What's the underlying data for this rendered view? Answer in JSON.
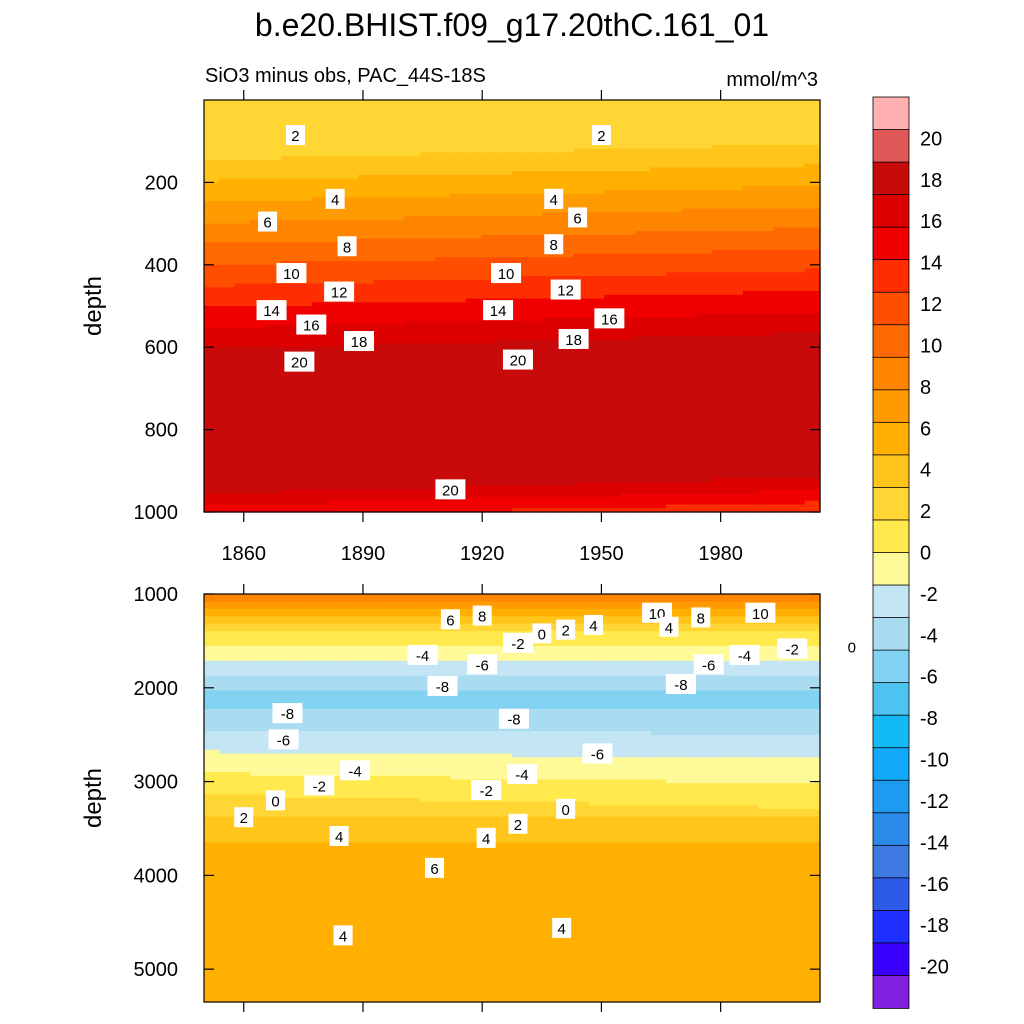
{
  "chart_data": {
    "type": "contour",
    "title": "b.e20.BHIST.f09_g17.20thC.161_01",
    "subtitle_left": "SiO3 minus obs, PAC_44S-18S",
    "subtitle_right": "mmol/m^3",
    "x_range": [
      1850,
      2005
    ],
    "x_ticks": [
      1860,
      1890,
      1920,
      1950,
      1980
    ],
    "colorbar": {
      "levels": [
        -22,
        -20,
        -18,
        -16,
        -14,
        -12,
        -10,
        -8,
        -6,
        -4,
        -2,
        0,
        2,
        4,
        6,
        8,
        10,
        12,
        14,
        16,
        18,
        20,
        22
      ],
      "colors": [
        "#7f1fe0",
        "#3a00ff",
        "#1f2fff",
        "#2e5ae8",
        "#3d79e0",
        "#2e8ae8",
        "#1e9af0",
        "#10a8f8",
        "#12bbf5",
        "#4dc4f0",
        "#82d2f2",
        "#a9dcf0",
        "#c4e6f4",
        "#fffa99",
        "#ffe94d",
        "#ffd633",
        "#ffc51a",
        "#ffb000",
        "#ff9a00",
        "#ff8400",
        "#ff6a00",
        "#ff4e00",
        "#ff2e00",
        "#f00000",
        "#dc0000",
        "#c80a0a",
        "#e05858",
        "#ffb0b0"
      ],
      "tick_labels": [
        "20",
        "18",
        "16",
        "14",
        "12",
        "10",
        "8",
        "6",
        "4",
        "2",
        "0",
        "-2",
        "-4",
        "-6",
        "-8",
        "-10",
        "-12",
        "-14",
        "-16",
        "-18",
        "-20"
      ]
    },
    "panels": [
      {
        "name": "upper",
        "ylabel": "depth",
        "y_range": [
          0,
          1000
        ],
        "y_ticks": [
          200,
          400,
          600,
          800,
          1000
        ],
        "contour_labels": [
          {
            "text": "2",
            "year": 1873,
            "depth": 85
          },
          {
            "text": "2",
            "year": 1950,
            "depth": 85
          },
          {
            "text": "4",
            "year": 1883,
            "depth": 240
          },
          {
            "text": "4",
            "year": 1938,
            "depth": 240
          },
          {
            "text": "6",
            "year": 1866,
            "depth": 295
          },
          {
            "text": "6",
            "year": 1944,
            "depth": 285
          },
          {
            "text": "8",
            "year": 1886,
            "depth": 355
          },
          {
            "text": "8",
            "year": 1938,
            "depth": 350
          },
          {
            "text": "10",
            "year": 1872,
            "depth": 420
          },
          {
            "text": "10",
            "year": 1926,
            "depth": 420
          },
          {
            "text": "12",
            "year": 1884,
            "depth": 465
          },
          {
            "text": "12",
            "year": 1941,
            "depth": 460
          },
          {
            "text": "14",
            "year": 1867,
            "depth": 510
          },
          {
            "text": "14",
            "year": 1924,
            "depth": 510
          },
          {
            "text": "16",
            "year": 1877,
            "depth": 545
          },
          {
            "text": "16",
            "year": 1952,
            "depth": 530
          },
          {
            "text": "18",
            "year": 1889,
            "depth": 585
          },
          {
            "text": "18",
            "year": 1943,
            "depth": 580
          },
          {
            "text": "20",
            "year": 1874,
            "depth": 635
          },
          {
            "text": "20",
            "year": 1929,
            "depth": 630
          },
          {
            "text": "20",
            "year": 1912,
            "depth": 945
          }
        ]
      },
      {
        "name": "lower",
        "ylabel": "depth",
        "y_range": [
          1000,
          5350
        ],
        "y_ticks": [
          1000,
          2000,
          3000,
          4000,
          5000
        ],
        "contour_labels": [
          {
            "text": "6",
            "year": 1912,
            "depth": 1270
          },
          {
            "text": "8",
            "year": 1920,
            "depth": 1230
          },
          {
            "text": "10",
            "year": 1964,
            "depth": 1200
          },
          {
            "text": "8",
            "year": 1975,
            "depth": 1250
          },
          {
            "text": "10",
            "year": 1990,
            "depth": 1200
          },
          {
            "text": "4",
            "year": 1967,
            "depth": 1350
          },
          {
            "text": "4",
            "year": 1948,
            "depth": 1330
          },
          {
            "text": "2",
            "year": 1941,
            "depth": 1380
          },
          {
            "text": "0",
            "year": 1935,
            "depth": 1420
          },
          {
            "text": "-2",
            "year": 1929,
            "depth": 1520
          },
          {
            "text": "-4",
            "year": 1905,
            "depth": 1650
          },
          {
            "text": "-6",
            "year": 1920,
            "depth": 1750
          },
          {
            "text": "-4",
            "year": 1986,
            "depth": 1650
          },
          {
            "text": "-2",
            "year": 1998,
            "depth": 1580
          },
          {
            "text": "0",
            "year": 2013,
            "depth": 1560
          },
          {
            "text": "-6",
            "year": 1977,
            "depth": 1750
          },
          {
            "text": "-8",
            "year": 1910,
            "depth": 1980
          },
          {
            "text": "-8",
            "year": 1970,
            "depth": 1960
          },
          {
            "text": "-8",
            "year": 1871,
            "depth": 2270
          },
          {
            "text": "-8",
            "year": 1928,
            "depth": 2330
          },
          {
            "text": "-6",
            "year": 1870,
            "depth": 2550
          },
          {
            "text": "-6",
            "year": 1949,
            "depth": 2700
          },
          {
            "text": "-4",
            "year": 1888,
            "depth": 2880
          },
          {
            "text": "-4",
            "year": 1930,
            "depth": 2920
          },
          {
            "text": "-2",
            "year": 1879,
            "depth": 3040
          },
          {
            "text": "-2",
            "year": 1921,
            "depth": 3090
          },
          {
            "text": "0",
            "year": 1868,
            "depth": 3200
          },
          {
            "text": "0",
            "year": 1941,
            "depth": 3290
          },
          {
            "text": "2",
            "year": 1860,
            "depth": 3380
          },
          {
            "text": "2",
            "year": 1929,
            "depth": 3450
          },
          {
            "text": "4",
            "year": 1884,
            "depth": 3580
          },
          {
            "text": "4",
            "year": 1921,
            "depth": 3600
          },
          {
            "text": "6",
            "year": 1908,
            "depth": 3920
          },
          {
            "text": "4",
            "year": 1885,
            "depth": 4640
          },
          {
            "text": "4",
            "year": 1940,
            "depth": 4560
          }
        ]
      }
    ]
  }
}
